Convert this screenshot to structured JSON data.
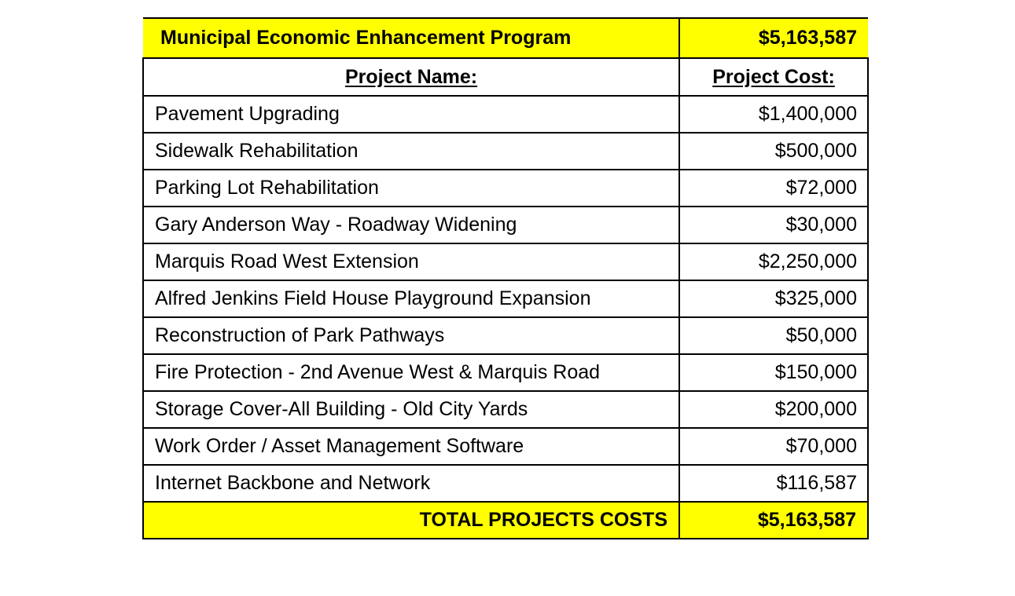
{
  "program": {
    "title": "Municipal Economic Enhancement Program",
    "amount": "$5,163,587"
  },
  "columns": {
    "name_header": "Project Name:",
    "cost_header": "Project Cost:"
  },
  "projects": [
    {
      "name": "Pavement Upgrading",
      "cost": "$1,400,000"
    },
    {
      "name": "Sidewalk Rehabilitation",
      "cost": "$500,000"
    },
    {
      "name": "Parking Lot Rehabilitation",
      "cost": "$72,000"
    },
    {
      "name": "Gary Anderson  Way - Roadway Widening",
      "cost": "$30,000"
    },
    {
      "name": "Marquis Road West Extension",
      "cost": "$2,250,000"
    },
    {
      "name": "Alfred Jenkins Field House Playground  Expansion",
      "cost": "$325,000"
    },
    {
      "name": "Reconstruction of Park Pathways",
      "cost": "$50,000"
    },
    {
      "name": "Fire Protection  - 2nd Avenue West & Marquis Road",
      "cost": "$150,000"
    },
    {
      "name": "Storage  Cover-All Building  - Old City Yards",
      "cost": "$200,000"
    },
    {
      "name": "Work Order / Asset Management Software",
      "cost": "$70,000"
    },
    {
      "name": "Internet  Backbone and Network",
      "cost": "$116,587"
    }
  ],
  "total": {
    "label": "TOTAL PROJECTS COSTS",
    "amount": "$5,163,587"
  },
  "colors": {
    "highlight": "#ffff00",
    "border": "#000000"
  }
}
